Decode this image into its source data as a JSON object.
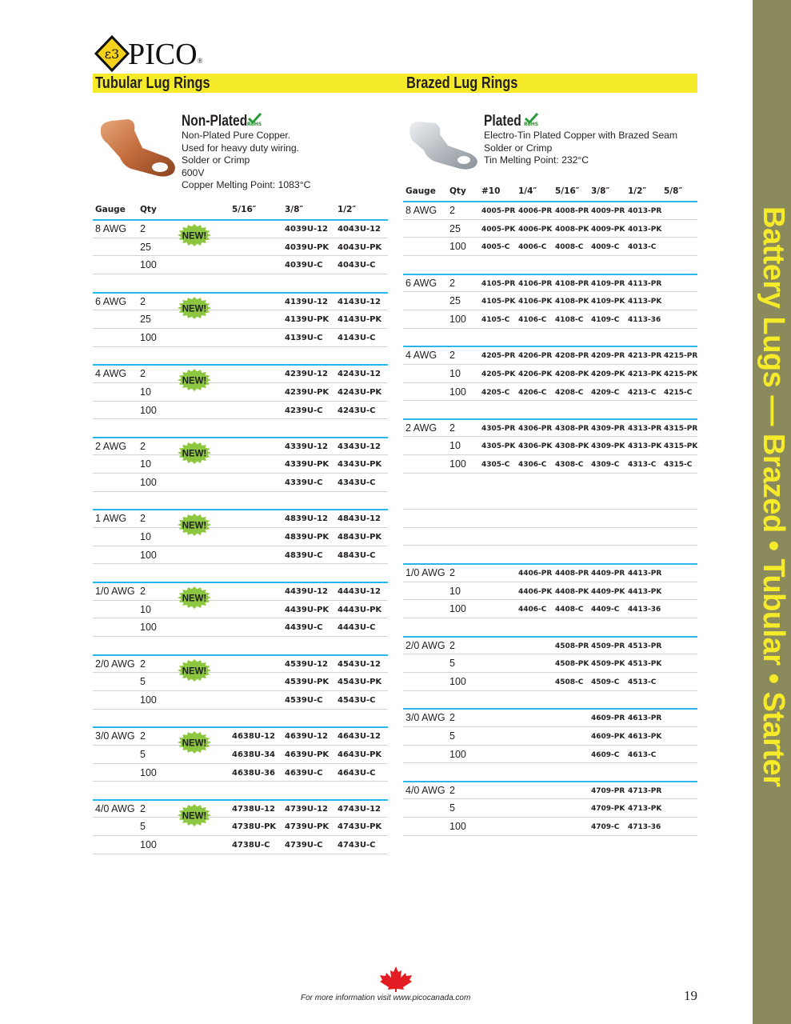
{
  "logo": {
    "text": "PICO",
    "registered": "®"
  },
  "sidebar": {
    "text": "Battery Lugs — Brazed • Tubular • Starter",
    "bg": "#8b8a5c",
    "fg": "#f6eb2a"
  },
  "left": {
    "section_title": "Tubular Lug Rings",
    "product_title": "Non-Plated",
    "rohs": "RoHS",
    "description": [
      "Non-Plated Pure Copper.",
      "Used for heavy duty wiring.",
      "Solder or Crimp",
      "600V",
      "Copper Melting Point: 1083°C"
    ],
    "headers": [
      "Gauge",
      "Qty",
      "5/16″",
      "3/8″",
      "1/2″"
    ],
    "new_label": "NEW!",
    "groups": [
      {
        "gauge": "8 AWG",
        "new": true,
        "rows": [
          {
            "qty": "2",
            "codes": [
              "",
              "4039U-12",
              "4043U-12"
            ]
          },
          {
            "qty": "25",
            "codes": [
              "",
              "4039U-PK",
              "4043U-PK"
            ]
          },
          {
            "qty": "100",
            "codes": [
              "",
              "4039U-C",
              "4043U-C"
            ]
          }
        ]
      },
      {
        "gauge": "6 AWG",
        "new": true,
        "rows": [
          {
            "qty": "2",
            "codes": [
              "",
              "4139U-12",
              "4143U-12"
            ]
          },
          {
            "qty": "25",
            "codes": [
              "",
              "4139U-PK",
              "4143U-PK"
            ]
          },
          {
            "qty": "100",
            "codes": [
              "",
              "4139U-C",
              "4143U-C"
            ]
          }
        ]
      },
      {
        "gauge": "4 AWG",
        "new": true,
        "rows": [
          {
            "qty": "2",
            "codes": [
              "",
              "4239U-12",
              "4243U-12"
            ]
          },
          {
            "qty": "10",
            "codes": [
              "",
              "4239U-PK",
              "4243U-PK"
            ]
          },
          {
            "qty": "100",
            "codes": [
              "",
              "4239U-C",
              "4243U-C"
            ]
          }
        ]
      },
      {
        "gauge": "2 AWG",
        "new": true,
        "rows": [
          {
            "qty": "2",
            "codes": [
              "",
              "4339U-12",
              "4343U-12"
            ]
          },
          {
            "qty": "10",
            "codes": [
              "",
              "4339U-PK",
              "4343U-PK"
            ]
          },
          {
            "qty": "100",
            "codes": [
              "",
              "4339U-C",
              "4343U-C"
            ]
          }
        ]
      },
      {
        "gauge": "1 AWG",
        "new": true,
        "rows": [
          {
            "qty": "2",
            "codes": [
              "",
              "4839U-12",
              "4843U-12"
            ]
          },
          {
            "qty": "10",
            "codes": [
              "",
              "4839U-PK",
              "4843U-PK"
            ]
          },
          {
            "qty": "100",
            "codes": [
              "",
              "4839U-C",
              "4843U-C"
            ]
          }
        ]
      },
      {
        "gauge": "1/0 AWG",
        "new": true,
        "rows": [
          {
            "qty": "2",
            "codes": [
              "",
              "4439U-12",
              "4443U-12"
            ]
          },
          {
            "qty": "10",
            "codes": [
              "",
              "4439U-PK",
              "4443U-PK"
            ]
          },
          {
            "qty": "100",
            "codes": [
              "",
              "4439U-C",
              "4443U-C"
            ]
          }
        ]
      },
      {
        "gauge": "2/0 AWG",
        "new": true,
        "rows": [
          {
            "qty": "2",
            "codes": [
              "",
              "4539U-12",
              "4543U-12"
            ]
          },
          {
            "qty": "5",
            "codes": [
              "",
              "4539U-PK",
              "4543U-PK"
            ]
          },
          {
            "qty": "100",
            "codes": [
              "",
              "4539U-C",
              "4543U-C"
            ]
          }
        ]
      },
      {
        "gauge": "3/0 AWG",
        "new": true,
        "rows": [
          {
            "qty": "2",
            "codes": [
              "4638U-12",
              "4639U-12",
              "4643U-12"
            ]
          },
          {
            "qty": "5",
            "codes": [
              "4638U-34",
              "4639U-PK",
              "4643U-PK"
            ]
          },
          {
            "qty": "100",
            "codes": [
              "4638U-36",
              "4639U-C",
              "4643U-C"
            ]
          }
        ]
      },
      {
        "gauge": "4/0 AWG",
        "new": true,
        "rows": [
          {
            "qty": "2",
            "codes": [
              "4738U-12",
              "4739U-12",
              "4743U-12"
            ]
          },
          {
            "qty": "5",
            "codes": [
              "4738U-PK",
              "4739U-PK",
              "4743U-PK"
            ]
          },
          {
            "qty": "100",
            "codes": [
              "4738U-C",
              "4739U-C",
              "4743U-C"
            ]
          }
        ]
      }
    ]
  },
  "right": {
    "section_title": "Brazed Lug Rings",
    "product_title": "Plated",
    "rohs": "RoHS",
    "description": [
      "Electro-Tin Plated Copper with Brazed Seam",
      "Solder or Crimp",
      "Tin Melting Point: 232°C"
    ],
    "headers": [
      "Gauge",
      "Qty",
      "#10",
      "1/4″",
      "5/16″",
      "3/8″",
      "1/2″",
      "5/8″"
    ],
    "groups": [
      {
        "gauge": "8 AWG",
        "rows": [
          {
            "qty": "2",
            "codes": [
              "4005-PR",
              "4006-PR",
              "4008-PR",
              "4009-PR",
              "4013-PR",
              ""
            ]
          },
          {
            "qty": "25",
            "codes": [
              "4005-PK",
              "4006-PK",
              "4008-PK",
              "4009-PK",
              "4013-PK",
              ""
            ]
          },
          {
            "qty": "100",
            "codes": [
              "4005-C",
              "4006-C",
              "4008-C",
              "4009-C",
              "4013-C",
              ""
            ]
          }
        ]
      },
      {
        "gauge": "6 AWG",
        "rows": [
          {
            "qty": "2",
            "codes": [
              "4105-PR",
              "4106-PR",
              "4108-PR",
              "4109-PR",
              "4113-PR",
              ""
            ]
          },
          {
            "qty": "25",
            "codes": [
              "4105-PK",
              "4106-PK",
              "4108-PK",
              "4109-PK",
              "4113-PK",
              ""
            ]
          },
          {
            "qty": "100",
            "codes": [
              "4105-C",
              "4106-C",
              "4108-C",
              "4109-C",
              "4113-36",
              ""
            ]
          }
        ]
      },
      {
        "gauge": "4 AWG",
        "rows": [
          {
            "qty": "2",
            "codes": [
              "4205-PR",
              "4206-PR",
              "4208-PR",
              "4209-PR",
              "4213-PR",
              "4215-PR"
            ]
          },
          {
            "qty": "10",
            "codes": [
              "4205-PK",
              "4206-PK",
              "4208-PK",
              "4209-PK",
              "4213-PK",
              "4215-PK"
            ]
          },
          {
            "qty": "100",
            "codes": [
              "4205-C",
              "4206-C",
              "4208-C",
              "4209-C",
              "4213-C",
              "4215-C"
            ]
          }
        ]
      },
      {
        "gauge": "2 AWG",
        "rows": [
          {
            "qty": "2",
            "codes": [
              "4305-PR",
              "4306-PR",
              "4308-PR",
              "4309-PR",
              "4313-PR",
              "4315-PR"
            ]
          },
          {
            "qty": "10",
            "codes": [
              "4305-PK",
              "4306-PK",
              "4308-PK",
              "4309-PK",
              "4313-PK",
              "4315-PK"
            ]
          },
          {
            "qty": "100",
            "codes": [
              "4305-C",
              "4306-C",
              "4308-C",
              "4309-C",
              "4313-C",
              "4315-C"
            ]
          }
        ]
      },
      null,
      {
        "gauge": "1/0 AWG",
        "rows": [
          {
            "qty": "2",
            "codes": [
              "",
              "4406-PR",
              "4408-PR",
              "4409-PR",
              "4413-PR",
              ""
            ]
          },
          {
            "qty": "10",
            "codes": [
              "",
              "4406-PK",
              "4408-PK",
              "4409-PK",
              "4413-PK",
              ""
            ]
          },
          {
            "qty": "100",
            "codes": [
              "",
              "4406-C",
              "4408-C",
              "4409-C",
              "4413-36",
              ""
            ]
          }
        ]
      },
      {
        "gauge": "2/0 AWG",
        "rows": [
          {
            "qty": "2",
            "codes": [
              "",
              "",
              "4508-PR",
              "4509-PR",
              "4513-PR",
              ""
            ]
          },
          {
            "qty": "5",
            "codes": [
              "",
              "",
              "4508-PK",
              "4509-PK",
              "4513-PK",
              ""
            ]
          },
          {
            "qty": "100",
            "codes": [
              "",
              "",
              "4508-C",
              "4509-C",
              "4513-C",
              ""
            ]
          }
        ]
      },
      {
        "gauge": "3/0 AWG",
        "rows": [
          {
            "qty": "2",
            "codes": [
              "",
              "",
              "",
              "4609-PR",
              "4613-PR",
              ""
            ]
          },
          {
            "qty": "5",
            "codes": [
              "",
              "",
              "",
              "4609-PK",
              "4613-PK",
              ""
            ]
          },
          {
            "qty": "100",
            "codes": [
              "",
              "",
              "",
              "4609-C",
              "4613-C",
              ""
            ]
          }
        ]
      },
      {
        "gauge": "4/0 AWG",
        "rows": [
          {
            "qty": "2",
            "codes": [
              "",
              "",
              "",
              "4709-PR",
              "4713-PR",
              ""
            ]
          },
          {
            "qty": "5",
            "codes": [
              "",
              "",
              "",
              "4709-PK",
              "4713-PK",
              ""
            ]
          },
          {
            "qty": "100",
            "codes": [
              "",
              "",
              "",
              "4709-C",
              "4713-36",
              ""
            ]
          }
        ]
      }
    ]
  },
  "footer": {
    "text": "For more information visit www.picocanada.com",
    "page_number": "19"
  },
  "colors": {
    "accent_yellow": "#f6eb2a",
    "rule_blue": "#29b6ea",
    "new_badge": "#8dc63f",
    "leaf_red": "#e31b23"
  }
}
